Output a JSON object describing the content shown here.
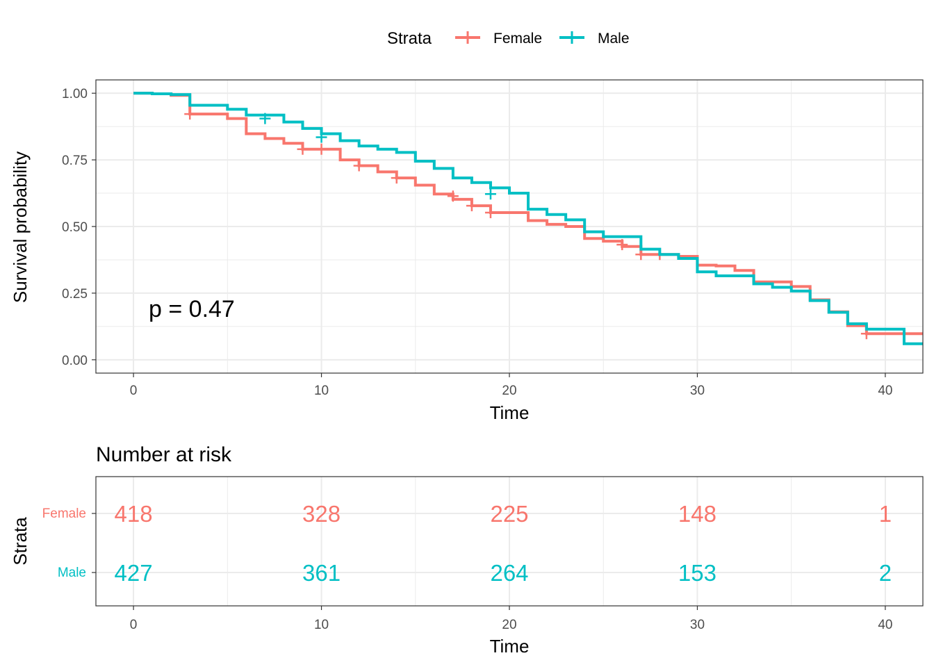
{
  "colors": {
    "female": "#F8766D",
    "male": "#00BFC4",
    "axis_text": "#4D4D4D",
    "grid": "#EBEBEB",
    "frame": "#333333"
  },
  "legend": {
    "title": "Strata",
    "items": [
      {
        "label": "Female",
        "color": "#F8766D"
      },
      {
        "label": "Male",
        "color": "#00BFC4"
      }
    ],
    "position": "top"
  },
  "chart_data": [
    {
      "type": "line",
      "subtype": "step",
      "xlabel": "Time",
      "ylabel": "Survival probability",
      "xlim": [
        -2,
        42
      ],
      "ylim": [
        -0.05,
        1.05
      ],
      "x_ticks": [
        0,
        10,
        20,
        30,
        40
      ],
      "y_ticks": [
        0.0,
        0.25,
        0.5,
        0.75,
        1.0
      ],
      "y_tick_labels": [
        "0.00",
        "0.25",
        "0.50",
        "0.75",
        "1.00"
      ],
      "grid": true,
      "annotation": "p = 0.47",
      "series": [
        {
          "name": "Female",
          "color": "#F8766D",
          "steps": [
            [
              0,
              1.0
            ],
            [
              1,
              0.998
            ],
            [
              2,
              0.992
            ],
            [
              3,
              0.922
            ],
            [
              5,
              0.905
            ],
            [
              6,
              0.848
            ],
            [
              7,
              0.83
            ],
            [
              8,
              0.812
            ],
            [
              9,
              0.79
            ],
            [
              11,
              0.75
            ],
            [
              12,
              0.728
            ],
            [
              13,
              0.705
            ],
            [
              14,
              0.682
            ],
            [
              15,
              0.655
            ],
            [
              16,
              0.622
            ],
            [
              17,
              0.602
            ],
            [
              18,
              0.578
            ],
            [
              19,
              0.552
            ],
            [
              21,
              0.522
            ],
            [
              22,
              0.508
            ],
            [
              23,
              0.5
            ],
            [
              24,
              0.455
            ],
            [
              25,
              0.445
            ],
            [
              26,
              0.425
            ],
            [
              27,
              0.395
            ],
            [
              29,
              0.388
            ],
            [
              30,
              0.355
            ],
            [
              31,
              0.352
            ],
            [
              32,
              0.335
            ],
            [
              33,
              0.292
            ],
            [
              35,
              0.275
            ],
            [
              36,
              0.225
            ],
            [
              37,
              0.18
            ],
            [
              38,
              0.128
            ],
            [
              39,
              0.098
            ],
            [
              41,
              0.098
            ],
            [
              42,
              0.098
            ]
          ],
          "censor": [
            [
              3,
              0.922
            ],
            [
              9,
              0.79
            ],
            [
              10,
              0.79
            ],
            [
              12,
              0.728
            ],
            [
              14,
              0.682
            ],
            [
              17,
              0.614
            ],
            [
              18,
              0.578
            ],
            [
              19,
              0.552
            ],
            [
              26,
              0.432
            ],
            [
              27,
              0.395
            ],
            [
              28,
              0.395
            ],
            [
              39,
              0.098
            ]
          ]
        },
        {
          "name": "Male",
          "color": "#00BFC4",
          "steps": [
            [
              0,
              1.0
            ],
            [
              1,
              0.998
            ],
            [
              2,
              0.995
            ],
            [
              3,
              0.955
            ],
            [
              5,
              0.94
            ],
            [
              6,
              0.918
            ],
            [
              8,
              0.892
            ],
            [
              9,
              0.868
            ],
            [
              10,
              0.848
            ],
            [
              11,
              0.822
            ],
            [
              12,
              0.802
            ],
            [
              13,
              0.79
            ],
            [
              14,
              0.778
            ],
            [
              15,
              0.745
            ],
            [
              16,
              0.718
            ],
            [
              17,
              0.682
            ],
            [
              18,
              0.665
            ],
            [
              19,
              0.645
            ],
            [
              20,
              0.625
            ],
            [
              21,
              0.565
            ],
            [
              22,
              0.545
            ],
            [
              23,
              0.525
            ],
            [
              24,
              0.48
            ],
            [
              25,
              0.462
            ],
            [
              27,
              0.415
            ],
            [
              28,
              0.395
            ],
            [
              29,
              0.38
            ],
            [
              30,
              0.33
            ],
            [
              31,
              0.315
            ],
            [
              33,
              0.285
            ],
            [
              34,
              0.272
            ],
            [
              35,
              0.258
            ],
            [
              36,
              0.222
            ],
            [
              37,
              0.178
            ],
            [
              38,
              0.135
            ],
            [
              39,
              0.115
            ],
            [
              41,
              0.06
            ],
            [
              42,
              0.06
            ]
          ],
          "censor": [
            [
              7,
              0.905
            ],
            [
              10,
              0.835
            ],
            [
              19,
              0.622
            ]
          ]
        }
      ]
    },
    {
      "type": "table",
      "title": "Number at risk",
      "xlabel": "Time",
      "ylabel": "Strata",
      "xlim": [
        -2,
        42
      ],
      "x_ticks": [
        0,
        10,
        20,
        30,
        40
      ],
      "rows": [
        {
          "name": "Female",
          "color": "#F8766D",
          "times": [
            0,
            10,
            20,
            30,
            40
          ],
          "values": [
            "418",
            "328",
            "225",
            "148",
            "1"
          ]
        },
        {
          "name": "Male",
          "color": "#00BFC4",
          "times": [
            0,
            10,
            20,
            30,
            40
          ],
          "values": [
            "427",
            "361",
            "264",
            "153",
            "2"
          ]
        }
      ]
    }
  ]
}
